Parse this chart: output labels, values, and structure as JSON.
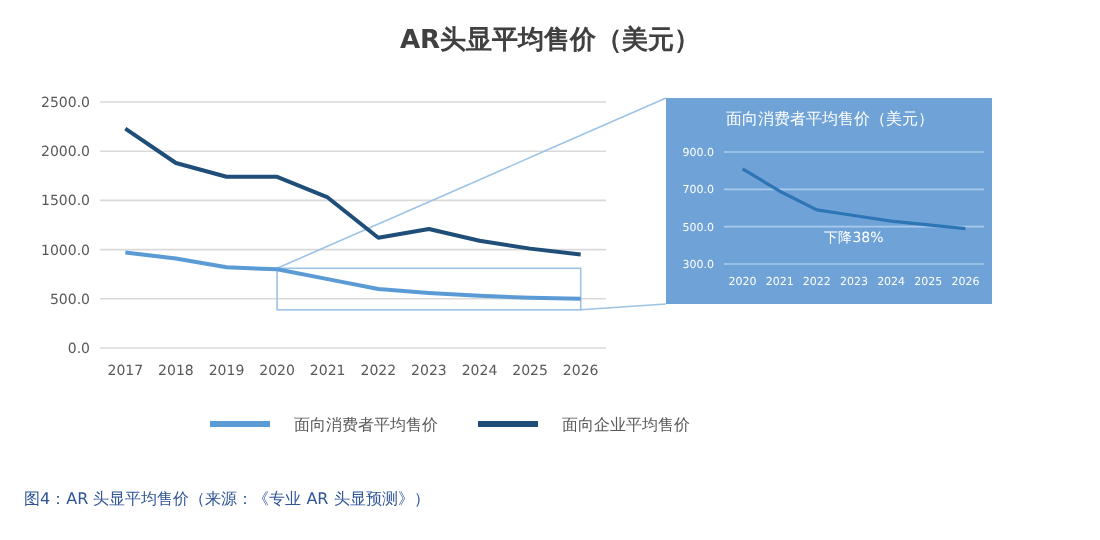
{
  "chart_data": [
    {
      "type": "line",
      "title": "AR头显平均售价（美元）",
      "categories": [
        "2017",
        "2018",
        "2019",
        "2020",
        "2021",
        "2022",
        "2023",
        "2024",
        "2025",
        "2026"
      ],
      "series": [
        {
          "name": "面向消费者平均售价",
          "color": "#5b9bd5",
          "values": [
            970,
            910,
            820,
            800,
            700,
            600,
            560,
            530,
            510,
            500
          ]
        },
        {
          "name": "面向企业平均售价",
          "color": "#1f4e79",
          "values": [
            2230,
            1880,
            1740,
            1740,
            1530,
            1120,
            1210,
            1090,
            1010,
            950
          ]
        }
      ],
      "ylim": [
        0,
        2500
      ],
      "yticks": [
        {
          "value": 0,
          "label": "0.0"
        },
        {
          "value": 500,
          "label": "500.0"
        },
        {
          "value": 1000,
          "label": "1000.0"
        },
        {
          "value": 1500,
          "label": "1500.0"
        },
        {
          "value": 2000,
          "label": "2000.0"
        },
        {
          "value": 2500,
          "label": "2500.0"
        }
      ],
      "grid": "y",
      "legend": "bottom",
      "annotations": [
        "图4：AR 头显平均售价（来源：《专业 AR 头显预测》）"
      ]
    },
    {
      "type": "line",
      "title": "面向消费者平均售价（美元）",
      "categories": [
        "2020",
        "2021",
        "2022",
        "2023",
        "2024",
        "2025",
        "2026"
      ],
      "series": [
        {
          "color": "#2e75b6",
          "values": [
            810,
            690,
            590,
            560,
            530,
            510,
            490
          ]
        }
      ],
      "ylim": [
        300,
        900
      ],
      "yticks": [
        {
          "value": 300,
          "label": "300.0"
        },
        {
          "value": 500,
          "label": "500.0"
        },
        {
          "value": 700,
          "label": "700.0"
        },
        {
          "value": 900,
          "label": "900.0"
        }
      ],
      "grid": "y",
      "annotations": [
        "下降38%"
      ]
    }
  ]
}
